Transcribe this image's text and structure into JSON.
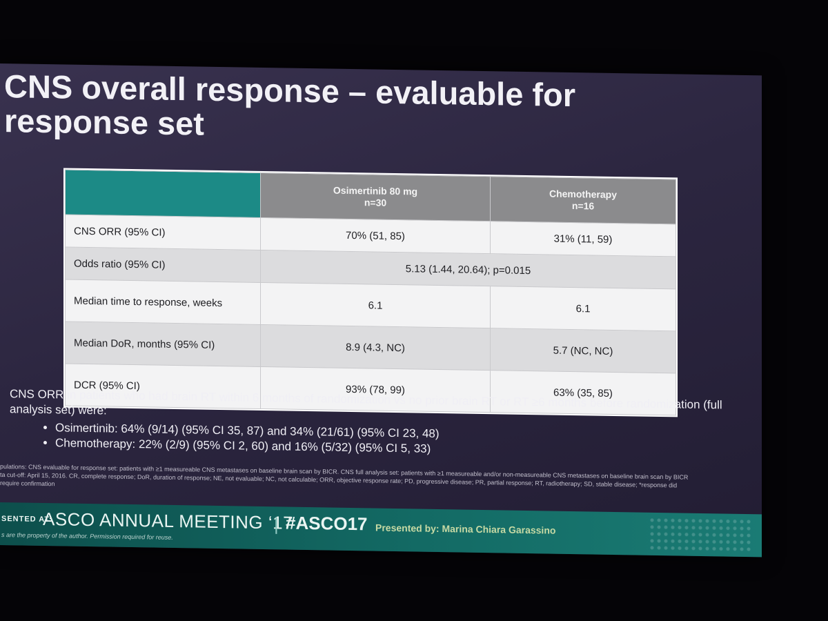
{
  "title": "CNS overall response – evaluable for response set",
  "table": {
    "columns": [
      {
        "name": "Osimertinib 80 mg",
        "n": "n=30"
      },
      {
        "name": "Chemotherapy",
        "n": "n=16"
      }
    ],
    "rows": [
      {
        "label": "CNS ORR (95% CI)",
        "osimertinib": "70% (51, 85)",
        "chemotherapy": "31% (11, 59)"
      },
      {
        "label": "Odds ratio (95% CI)",
        "combined": "5.13 (1.44, 20.64); p=0.015"
      },
      {
        "label": "Median time to response, weeks",
        "osimertinib": "6.1",
        "chemotherapy": "6.1"
      },
      {
        "label": "Median DoR, months (95% CI)",
        "osimertinib": "8.9 (4.3, NC)",
        "chemotherapy": "5.7 (NC, NC)"
      },
      {
        "label": "DCR (95% CI)",
        "osimertinib": "93% (78, 99)",
        "chemotherapy": "63% (35, 85)"
      }
    ]
  },
  "notes": {
    "intro": "CNS ORR in patients who had brain RT within 6 months of randomization vs no prior brain RT or RT ≥6 months before randomization (full analysis set) were:",
    "bullets": [
      "Osimertinib: 64% (9/14) (95% CI 35, 87) and 34% (21/61) (95% CI 23, 48)",
      "Chemotherapy: 22% (2/9) (95% CI 2, 60) and 16% (5/32) (95% CI 5, 33)"
    ]
  },
  "footnote": [
    "pulations: CNS evaluable for response set: patients with ≥1 measureable CNS metastases on baseline brain scan by BICR. CNS full analysis set: patients with ≥1 measureable and/or non-measureable CNS metastases on baseline brain scan by BICR",
    "ta cut-off: April 15, 2016. CR, complete response; DoR, duration of response; NE, not evaluable; NC, not calculable; ORR, objective response rate; PD, progressive disease; PR, partial response; RT, radiotherapy; SD, stable disease; *response did",
    "require confirmation"
  ],
  "banner": {
    "presented_at": "SENTED AT:",
    "meeting": "ASCO ANNUAL MEETING ‘17",
    "separator": "|",
    "hashtag": "#ASCO17",
    "presenter": "Presented by: Marina Chiara Garassino",
    "rights": "s are the property of the author. Permission required for reuse."
  }
}
